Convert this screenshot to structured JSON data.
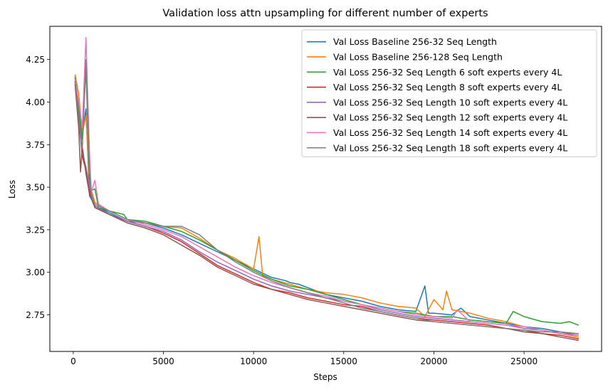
{
  "chart_data": {
    "type": "line",
    "title": "Validation loss attn upsampling for different number of experts",
    "xlabel": "Steps",
    "ylabel": "Loss",
    "xlim": [
      -1300,
      29300
    ],
    "ylim": [
      2.535,
      4.445
    ],
    "xticks": [
      0,
      5000,
      10000,
      15000,
      20000,
      25000
    ],
    "yticks": [
      2.75,
      3.0,
      3.25,
      3.5,
      3.75,
      4.0,
      4.25
    ],
    "xtick_labels": [
      "0",
      "5000",
      "10000",
      "15000",
      "20000",
      "25000"
    ],
    "ytick_labels": [
      "2.75",
      "3.00",
      "3.25",
      "3.50",
      "3.75",
      "4.00",
      "4.25"
    ],
    "grid": false,
    "legend_position": "upper-right",
    "series": [
      {
        "name": "Val Loss Baseline 256-32 Seq Length",
        "color": "#1f77b4",
        "points": [
          [
            100,
            4.15
          ],
          [
            300,
            3.98
          ],
          [
            500,
            3.8
          ],
          [
            700,
            3.96
          ],
          [
            900,
            3.45
          ],
          [
            1200,
            3.39
          ],
          [
            2000,
            3.35
          ],
          [
            3000,
            3.3
          ],
          [
            4000,
            3.29
          ],
          [
            5000,
            3.26
          ],
          [
            6000,
            3.22
          ],
          [
            7000,
            3.17
          ],
          [
            8000,
            3.12
          ],
          [
            9000,
            3.07
          ],
          [
            10000,
            3.02
          ],
          [
            11000,
            2.97
          ],
          [
            11800,
            2.95
          ],
          [
            12000,
            2.94
          ],
          [
            12500,
            2.93
          ],
          [
            13000,
            2.91
          ],
          [
            14000,
            2.87
          ],
          [
            15000,
            2.85
          ],
          [
            16000,
            2.83
          ],
          [
            17000,
            2.8
          ],
          [
            18000,
            2.78
          ],
          [
            19000,
            2.77
          ],
          [
            19500,
            2.92
          ],
          [
            19700,
            2.76
          ],
          [
            20000,
            2.76
          ],
          [
            21000,
            2.75
          ],
          [
            21500,
            2.79
          ],
          [
            22000,
            2.74
          ],
          [
            23000,
            2.72
          ],
          [
            24000,
            2.7
          ],
          [
            25000,
            2.68
          ],
          [
            26000,
            2.67
          ],
          [
            27000,
            2.65
          ],
          [
            28000,
            2.63
          ]
        ]
      },
      {
        "name": "Val Loss Baseline 256-128 Seq Length",
        "color": "#ff7f0e",
        "points": [
          [
            100,
            4.16
          ],
          [
            300,
            4.05
          ],
          [
            500,
            3.82
          ],
          [
            700,
            3.92
          ],
          [
            900,
            3.52
          ],
          [
            1200,
            3.41
          ],
          [
            2000,
            3.36
          ],
          [
            3000,
            3.31
          ],
          [
            4000,
            3.29
          ],
          [
            5000,
            3.27
          ],
          [
            6000,
            3.26
          ],
          [
            7000,
            3.2
          ],
          [
            8000,
            3.13
          ],
          [
            9000,
            3.08
          ],
          [
            10000,
            3.02
          ],
          [
            10300,
            3.21
          ],
          [
            10500,
            2.98
          ],
          [
            11000,
            2.96
          ],
          [
            12000,
            2.93
          ],
          [
            13000,
            2.9
          ],
          [
            14000,
            2.88
          ],
          [
            15000,
            2.87
          ],
          [
            16000,
            2.85
          ],
          [
            17000,
            2.82
          ],
          [
            18000,
            2.8
          ],
          [
            19000,
            2.79
          ],
          [
            19500,
            2.74
          ],
          [
            20000,
            2.84
          ],
          [
            20500,
            2.78
          ],
          [
            20700,
            2.89
          ],
          [
            21000,
            2.78
          ],
          [
            22000,
            2.76
          ],
          [
            23000,
            2.73
          ],
          [
            24000,
            2.71
          ],
          [
            25000,
            2.68
          ],
          [
            26000,
            2.66
          ],
          [
            27000,
            2.64
          ],
          [
            28000,
            2.62
          ]
        ]
      },
      {
        "name": "Val Loss 256-32 Seq Length 6 soft experts every 4L",
        "color": "#2ca02c",
        "points": [
          [
            100,
            4.14
          ],
          [
            300,
            3.95
          ],
          [
            500,
            3.78
          ],
          [
            700,
            4.2
          ],
          [
            900,
            3.55
          ],
          [
            1000,
            3.48
          ],
          [
            1200,
            3.49
          ],
          [
            1400,
            3.38
          ],
          [
            2000,
            3.36
          ],
          [
            2800,
            3.34
          ],
          [
            3000,
            3.31
          ],
          [
            4000,
            3.3
          ],
          [
            5000,
            3.27
          ],
          [
            6000,
            3.24
          ],
          [
            7000,
            3.19
          ],
          [
            8000,
            3.13
          ],
          [
            9000,
            3.07
          ],
          [
            10000,
            3.01
          ],
          [
            11000,
            2.96
          ],
          [
            12000,
            2.92
          ],
          [
            13000,
            2.9
          ],
          [
            14000,
            2.87
          ],
          [
            15000,
            2.84
          ],
          [
            16000,
            2.81
          ],
          [
            17000,
            2.79
          ],
          [
            18000,
            2.77
          ],
          [
            19000,
            2.76
          ],
          [
            20000,
            2.74
          ],
          [
            21000,
            2.74
          ],
          [
            22000,
            2.72
          ],
          [
            23000,
            2.71
          ],
          [
            24000,
            2.7
          ],
          [
            24400,
            2.77
          ],
          [
            25000,
            2.74
          ],
          [
            26000,
            2.71
          ],
          [
            27000,
            2.7
          ],
          [
            27500,
            2.71
          ],
          [
            28000,
            2.69
          ]
        ]
      },
      {
        "name": "Val Loss 256-32 Seq Length 8 soft experts every 4L",
        "color": "#d62728",
        "points": [
          [
            100,
            4.12
          ],
          [
            300,
            3.9
          ],
          [
            500,
            3.68
          ],
          [
            700,
            3.6
          ],
          [
            900,
            3.48
          ],
          [
            1200,
            3.38
          ],
          [
            2000,
            3.34
          ],
          [
            3000,
            3.3
          ],
          [
            4000,
            3.27
          ],
          [
            5000,
            3.23
          ],
          [
            6000,
            3.18
          ],
          [
            7000,
            3.11
          ],
          [
            8000,
            3.04
          ],
          [
            9000,
            2.99
          ],
          [
            10000,
            2.94
          ],
          [
            11000,
            2.9
          ],
          [
            12000,
            2.88
          ],
          [
            13000,
            2.85
          ],
          [
            14000,
            2.83
          ],
          [
            15000,
            2.81
          ],
          [
            16000,
            2.8
          ],
          [
            17000,
            2.77
          ],
          [
            18000,
            2.75
          ],
          [
            19000,
            2.73
          ],
          [
            20000,
            2.72
          ],
          [
            21000,
            2.71
          ],
          [
            22000,
            2.7
          ],
          [
            23000,
            2.69
          ],
          [
            24000,
            2.67
          ],
          [
            25000,
            2.66
          ],
          [
            26000,
            2.64
          ],
          [
            27000,
            2.63
          ],
          [
            28000,
            2.61
          ]
        ]
      },
      {
        "name": "Val Loss 256-32 Seq Length 10 soft experts every 4L",
        "color": "#9467bd",
        "points": [
          [
            100,
            4.11
          ],
          [
            300,
            3.88
          ],
          [
            500,
            3.7
          ],
          [
            700,
            3.62
          ],
          [
            900,
            3.5
          ],
          [
            1200,
            3.39
          ],
          [
            2000,
            3.34
          ],
          [
            3000,
            3.3
          ],
          [
            4000,
            3.27
          ],
          [
            5000,
            3.24
          ],
          [
            6000,
            3.19
          ],
          [
            7000,
            3.12
          ],
          [
            8000,
            3.06
          ],
          [
            9000,
            3.01
          ],
          [
            10000,
            2.96
          ],
          [
            11000,
            2.92
          ],
          [
            12000,
            2.89
          ],
          [
            13000,
            2.87
          ],
          [
            14000,
            2.85
          ],
          [
            15000,
            2.83
          ],
          [
            16000,
            2.81
          ],
          [
            17000,
            2.78
          ],
          [
            18000,
            2.76
          ],
          [
            19000,
            2.74
          ],
          [
            20000,
            2.73
          ],
          [
            21000,
            2.72
          ],
          [
            22000,
            2.71
          ],
          [
            23000,
            2.7
          ],
          [
            24000,
            2.69
          ],
          [
            25000,
            2.67
          ],
          [
            26000,
            2.66
          ],
          [
            27000,
            2.64
          ],
          [
            28000,
            2.63
          ]
        ]
      },
      {
        "name": "Val Loss 256-32 Seq Length 12 soft experts every 4L",
        "color": "#8c564b",
        "points": [
          [
            100,
            4.1
          ],
          [
            300,
            3.85
          ],
          [
            400,
            3.59
          ],
          [
            500,
            3.74
          ],
          [
            700,
            3.58
          ],
          [
            900,
            3.46
          ],
          [
            1200,
            3.38
          ],
          [
            2000,
            3.34
          ],
          [
            3000,
            3.29
          ],
          [
            4000,
            3.26
          ],
          [
            5000,
            3.22
          ],
          [
            6000,
            3.16
          ],
          [
            7000,
            3.1
          ],
          [
            8000,
            3.03
          ],
          [
            9000,
            2.98
          ],
          [
            10000,
            2.93
          ],
          [
            11000,
            2.9
          ],
          [
            12000,
            2.87
          ],
          [
            13000,
            2.84
          ],
          [
            14000,
            2.82
          ],
          [
            15000,
            2.8
          ],
          [
            16000,
            2.78
          ],
          [
            17000,
            2.76
          ],
          [
            18000,
            2.74
          ],
          [
            19000,
            2.72
          ],
          [
            20000,
            2.71
          ],
          [
            21000,
            2.7
          ],
          [
            22000,
            2.69
          ],
          [
            23000,
            2.68
          ],
          [
            24000,
            2.67
          ],
          [
            25000,
            2.65
          ],
          [
            26000,
            2.64
          ],
          [
            27000,
            2.62
          ],
          [
            28000,
            2.6
          ]
        ]
      },
      {
        "name": "Val Loss 256-32 Seq Length 14 soft experts every 4L",
        "color": "#e377c2",
        "points": [
          [
            100,
            4.13
          ],
          [
            300,
            4.0
          ],
          [
            500,
            3.85
          ],
          [
            700,
            4.38
          ],
          [
            900,
            3.7
          ],
          [
            1000,
            3.47
          ],
          [
            1200,
            3.54
          ],
          [
            1400,
            3.4
          ],
          [
            2000,
            3.36
          ],
          [
            3000,
            3.31
          ],
          [
            4000,
            3.28
          ],
          [
            5000,
            3.25
          ],
          [
            6000,
            3.21
          ],
          [
            7000,
            3.15
          ],
          [
            8000,
            3.09
          ],
          [
            9000,
            3.03
          ],
          [
            10000,
            2.98
          ],
          [
            11000,
            2.94
          ],
          [
            12000,
            2.91
          ],
          [
            13000,
            2.88
          ],
          [
            14000,
            2.86
          ],
          [
            15000,
            2.83
          ],
          [
            16000,
            2.81
          ],
          [
            17000,
            2.79
          ],
          [
            18000,
            2.77
          ],
          [
            19000,
            2.75
          ],
          [
            20000,
            2.74
          ],
          [
            21000,
            2.73
          ],
          [
            21300,
            2.78
          ],
          [
            22000,
            2.71
          ],
          [
            23000,
            2.7
          ],
          [
            24000,
            2.69
          ],
          [
            25000,
            2.68
          ],
          [
            26000,
            2.66
          ],
          [
            27000,
            2.64
          ],
          [
            28000,
            2.63
          ]
        ]
      },
      {
        "name": "Val Loss 256-32 Seq Length 18 soft experts every 4L",
        "color": "#7f7f7f",
        "points": [
          [
            100,
            4.12
          ],
          [
            300,
            3.92
          ],
          [
            500,
            3.72
          ],
          [
            700,
            4.25
          ],
          [
            900,
            3.6
          ],
          [
            1000,
            3.44
          ],
          [
            1200,
            3.4
          ],
          [
            2000,
            3.36
          ],
          [
            3000,
            3.31
          ],
          [
            4000,
            3.29
          ],
          [
            5000,
            3.27
          ],
          [
            5500,
            3.27
          ],
          [
            6000,
            3.27
          ],
          [
            7000,
            3.22
          ],
          [
            8000,
            3.13
          ],
          [
            9000,
            3.06
          ],
          [
            10000,
            3.0
          ],
          [
            11000,
            2.95
          ],
          [
            12000,
            2.91
          ],
          [
            13000,
            2.88
          ],
          [
            14000,
            2.85
          ],
          [
            15000,
            2.82
          ],
          [
            16000,
            2.79
          ],
          [
            17000,
            2.77
          ],
          [
            18000,
            2.75
          ],
          [
            19000,
            2.73
          ],
          [
            20000,
            2.71
          ],
          [
            21000,
            2.7
          ],
          [
            22000,
            2.69
          ],
          [
            23000,
            2.68
          ],
          [
            24000,
            2.67
          ],
          [
            25000,
            2.66
          ],
          [
            26000,
            2.65
          ],
          [
            27000,
            2.65
          ],
          [
            28000,
            2.64
          ]
        ]
      }
    ]
  }
}
